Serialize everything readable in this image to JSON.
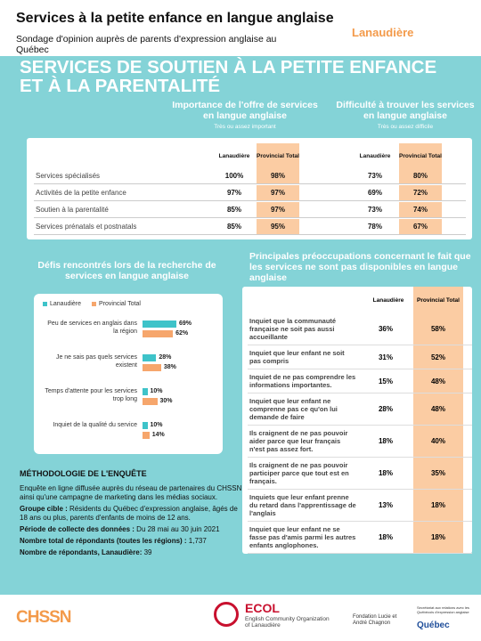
{
  "header": {
    "title": "Services à la petite enfance en langue anglaise",
    "subtitle": "Sondage d'opinion auprès de parents d'expression anglaise au Québec",
    "region": "Lanaudière"
  },
  "banner": "SERVICES DE SOUTIEN À LA PETITE ENFANCE ET À LA PARENTALITÉ",
  "table1": {
    "groups": [
      {
        "title": "Importance de l'offre de services en langue anglaise",
        "note": "Très ou assez important"
      },
      {
        "title": "Difficulté à trouver les services en langue anglaise",
        "note": "Très ou assez difficile"
      }
    ],
    "columns": [
      "Lanaudière",
      "Provincial Total",
      "Lanaudière",
      "Provincial Total"
    ],
    "rows": [
      [
        "Services spécialisés",
        "100%",
        "98%",
        "73%",
        "80%"
      ],
      [
        "Activités de la petite enfance",
        "97%",
        "97%",
        "69%",
        "72%"
      ],
      [
        "Soutien à la parentalité",
        "85%",
        "97%",
        "73%",
        "74%"
      ],
      [
        "Services prénatals et postnatals",
        "85%",
        "95%",
        "78%",
        "67%"
      ]
    ]
  },
  "chart_data": {
    "type": "bar",
    "orientation": "horizontal",
    "title": "Défis rencontrés lors de la recherche de services en langue anglaise",
    "categories": [
      "Peu de services en anglais dans la région",
      "Je ne sais pas quels services existent",
      "Temps d'attente pour les services trop long",
      "Inquiet de la qualité du service"
    ],
    "series": [
      {
        "name": "Lanaudière",
        "color": "#3ec3c9",
        "values": [
          69,
          28,
          10,
          10
        ],
        "value_labels": [
          "69%",
          "28%",
          "10%",
          "10%"
        ]
      },
      {
        "name": "Provincial Total",
        "color": "#f6a66c",
        "values": [
          62,
          38,
          30,
          14
        ],
        "value_labels": [
          "62%",
          "38%",
          "30%",
          "14%"
        ]
      }
    ],
    "legend": "top"
  },
  "table2": {
    "title": "Principales préoccupations concernant le fait que les services ne sont pas disponibles en langue anglaise",
    "columns": [
      "Lanaudière",
      "Provincial Total"
    ],
    "rows": [
      [
        "Inquiet que la communauté française ne soit pas aussi accueillante",
        "36%",
        "58%"
      ],
      [
        "Inquiet que leur enfant ne soit pas compris",
        "31%",
        "52%"
      ],
      [
        "Inquiet de ne pas comprendre les informations importantes.",
        "15%",
        "48%"
      ],
      [
        "Inquiet que leur enfant ne comprenne pas ce qu'on lui demande de faire",
        "28%",
        "48%"
      ],
      [
        "Ils craignent de ne pas pouvoir aider parce que leur français n'est pas assez fort.",
        "18%",
        "40%"
      ],
      [
        "Ils craignent de ne pas pouvoir participer parce que tout est en français.",
        "18%",
        "35%"
      ],
      [
        "Inquiets que leur enfant prenne du retard dans l'apprentissage de l'anglais",
        "13%",
        "18%"
      ],
      [
        "Inquiet que leur enfant ne se fasse pas d'amis parmi les autres enfants anglophones.",
        "18%",
        "18%"
      ]
    ]
  },
  "methodology": {
    "title": "MÉTHODOLOGIE DE L'ENQUÊTE",
    "intro": "Enquête en ligne diffusée auprès du réseau de partenaires du CHSSN ainsi qu'une campagne de marketing dans les médias sociaux.",
    "items": [
      {
        "label": "Groupe cible :",
        "text": " Résidents du Québec d'expression anglaise, âgés de 18 ans ou plus, parents d'enfants de moins de 12 ans."
      },
      {
        "label": "Période de collecte des données :",
        "text": " Du 28 mai au 30 juin 2021"
      },
      {
        "label": "Nombre total de répondants (toutes les régions) :",
        "text": " 1,737"
      },
      {
        "label": "Nombre de répondants, Lanaudière:",
        "text": " 39"
      }
    ]
  },
  "footer": {
    "chssn": "CHSSN",
    "ecol": "ECOL",
    "ecol_name": "English Community Organization of Lanaudière",
    "fondation": "Fondation Lucie et André Chagnon",
    "secretariat": "Secrétariat aux relations avec les Québécois d'expression anglaise",
    "quebec": "Québec"
  }
}
